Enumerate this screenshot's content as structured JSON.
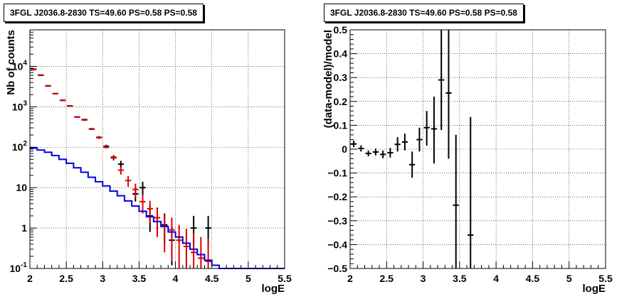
{
  "chart_data": [
    {
      "type": "scatter",
      "title": "3FGL J2036.8-2830 TS=49.60 PS=0.58 PS=0.58",
      "xlabel": "logE",
      "ylabel": "Nb of counts",
      "xlim": [
        2,
        5.5
      ],
      "ylim": [
        0.1,
        80000
      ],
      "yscale": "log",
      "grid": true,
      "x_ticks": [
        "2",
        "2.5",
        "3",
        "3.5",
        "4",
        "4.5",
        "5",
        "5.5"
      ],
      "y_ticks": [
        {
          "value": 0.1,
          "label": "10",
          "sup": "-1"
        },
        {
          "value": 1,
          "label": "1",
          "sup": ""
        },
        {
          "value": 10,
          "label": "10",
          "sup": ""
        },
        {
          "value": 100,
          "label": "10",
          "sup": "2"
        },
        {
          "value": 1000,
          "label": "10",
          "sup": "3"
        },
        {
          "value": 10000,
          "label": "10",
          "sup": "4"
        }
      ],
      "series": [
        {
          "kind": "points",
          "color": "#000000",
          "x": [
            2.05,
            2.15,
            2.25,
            2.35,
            2.45,
            2.55,
            2.65,
            2.75,
            2.85,
            2.95,
            3.05,
            3.15,
            3.25,
            3.35,
            3.45,
            3.55,
            3.65,
            3.75,
            3.85,
            3.95,
            4.05,
            4.15,
            4.25,
            4.35,
            4.45
          ],
          "y": [
            8500,
            6000,
            3300,
            2100,
            1450,
            1050,
            560,
            480,
            280,
            175,
            105,
            55,
            38,
            null,
            7,
            10,
            2,
            1.8,
            1.2,
            0.5,
            null,
            null,
            1.0,
            null,
            1.0
          ],
          "ylo": [
            8300,
            5850,
            3200,
            2030,
            1400,
            1010,
            535,
            455,
            265,
            162,
            95,
            47,
            30,
            null,
            4.5,
            6.5,
            0.8,
            0.7,
            0.4,
            0.12,
            null,
            null,
            0.35,
            null,
            0.35
          ],
          "yhi": [
            8700,
            6150,
            3400,
            2170,
            1500,
            1090,
            585,
            505,
            295,
            188,
            115,
            63,
            46,
            null,
            10,
            14,
            3.5,
            3.2,
            2.3,
            1.2,
            null,
            null,
            2.0,
            null,
            2.0
          ]
        },
        {
          "kind": "points",
          "color": "#dd0000",
          "x": [
            2.05,
            2.15,
            2.25,
            2.35,
            2.45,
            2.55,
            2.65,
            2.75,
            2.85,
            2.95,
            3.05,
            3.15,
            3.25,
            3.35,
            3.45,
            3.55,
            3.65,
            3.75,
            3.85,
            3.95,
            4.05,
            4.15,
            4.25,
            4.35,
            4.45
          ],
          "y": [
            8300,
            6100,
            3250,
            2120,
            1430,
            1040,
            555,
            470,
            285,
            172,
            100,
            57,
            27,
            15,
            9,
            4.5,
            3,
            1.8,
            1.1,
            0.9,
            0.5,
            0.35,
            0.25,
            0.18,
            0.15
          ],
          "ylo": [
            8100,
            5950,
            3150,
            2050,
            1380,
            1000,
            530,
            445,
            270,
            160,
            92,
            50,
            21,
            10.5,
            5.5,
            2.3,
            1.3,
            0.6,
            0.25,
            0.15,
            0.1,
            0.1,
            0.1,
            0.1,
            0.1
          ],
          "yhi": [
            8500,
            6250,
            3350,
            2190,
            1480,
            1080,
            580,
            495,
            300,
            184,
            108,
            64,
            33,
            19.5,
            12.5,
            6.7,
            4.7,
            3,
            2.1,
            1.8,
            1.2,
            0.95,
            0.75,
            0.6,
            0.55
          ]
        },
        {
          "kind": "step",
          "color": "#0000dd",
          "edges": [
            2.0,
            2.1,
            2.2,
            2.3,
            2.4,
            2.5,
            2.6,
            2.7,
            2.8,
            2.9,
            3.0,
            3.1,
            3.2,
            3.3,
            3.4,
            3.5,
            3.6,
            3.7,
            3.8,
            3.9,
            4.0,
            4.1,
            4.2,
            4.3,
            4.4,
            4.5,
            4.6,
            5.5
          ],
          "values": [
            95,
            85,
            75,
            62,
            50,
            40,
            31,
            24,
            18,
            14,
            11,
            8.2,
            6.3,
            4.7,
            3.5,
            2.6,
            1.9,
            1.45,
            1.1,
            0.8,
            0.6,
            0.42,
            0.3,
            0.22,
            0.16,
            0.12,
            0.1
          ]
        }
      ]
    },
    {
      "type": "scatter",
      "title": "3FGL J2036.8-2830 TS=49.60 PS=0.58 PS=0.58",
      "xlabel": "logE",
      "ylabel": "(data-model)/model",
      "xlim": [
        2,
        5.5
      ],
      "ylim": [
        -0.5,
        0.5
      ],
      "grid": true,
      "x_ticks": [
        "2",
        "2.5",
        "3",
        "3.5",
        "4",
        "4.5",
        "5",
        "5.5"
      ],
      "y_ticks": [
        "−0.5",
        "−0.4",
        "−0.3",
        "−0.2",
        "−0.1",
        "0",
        "0.1",
        "0.2",
        "0.3",
        "0.4",
        "0.5"
      ],
      "y_tick_values": [
        -0.5,
        -0.4,
        -0.3,
        -0.2,
        -0.1,
        0,
        0.1,
        0.2,
        0.3,
        0.4,
        0.5
      ],
      "series": [
        {
          "kind": "points",
          "color": "#000000",
          "x": [
            2.05,
            2.15,
            2.25,
            2.35,
            2.45,
            2.55,
            2.65,
            2.75,
            2.85,
            2.95,
            3.05,
            3.15,
            3.25,
            3.35,
            3.45,
            3.65
          ],
          "y": [
            0.022,
            0.003,
            -0.018,
            -0.012,
            -0.022,
            -0.015,
            0.02,
            0.03,
            -0.065,
            0.04,
            0.09,
            0.085,
            0.29,
            0.235,
            -0.235,
            -0.36
          ],
          "ylo": [
            0.008,
            -0.01,
            -0.03,
            -0.026,
            -0.038,
            -0.035,
            -0.01,
            -0.005,
            -0.12,
            -0.01,
            0.015,
            -0.06,
            0.08,
            -0.04,
            -0.55,
            -0.55
          ],
          "yhi": [
            0.036,
            0.016,
            -0.006,
            0.002,
            -0.006,
            0.005,
            0.05,
            0.065,
            -0.01,
            0.09,
            0.16,
            0.22,
            0.5,
            0.5,
            0.06,
            0.135
          ]
        }
      ]
    }
  ]
}
